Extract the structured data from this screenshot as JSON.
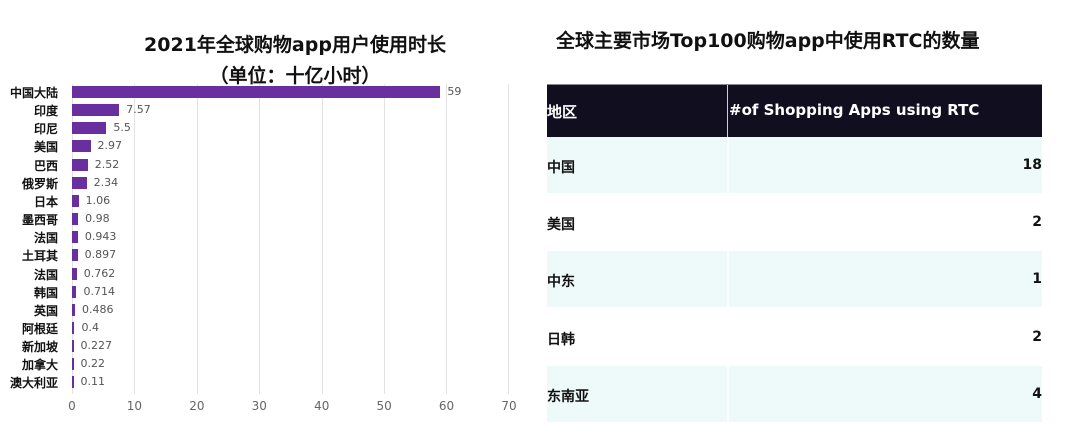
{
  "chart_data": {
    "type": "bar",
    "orientation": "horizontal",
    "title": "2021年全球购物app用户使用时长",
    "subtitle": "（单位：十亿小时）",
    "xlabel": "",
    "ylabel": "",
    "xlim": [
      0,
      70
    ],
    "xticks": [
      0,
      10,
      20,
      30,
      40,
      50,
      60,
      70
    ],
    "grid": true,
    "legend": null,
    "bar_color": "#6a2f9f",
    "categories": [
      "中国大陆",
      "印度",
      "印尼",
      "美国",
      "巴西",
      "俄罗斯",
      "日本",
      "墨西哥",
      "法国",
      "土耳其",
      "法国",
      "韩国",
      "英国",
      "阿根廷",
      "新加坡",
      "加拿大",
      "澳大利亚"
    ],
    "values": [
      59,
      7.57,
      5.5,
      2.97,
      2.52,
      2.34,
      1.06,
      0.98,
      0.943,
      0.897,
      0.762,
      0.714,
      0.486,
      0.4,
      0.227,
      0.22,
      0.11
    ],
    "value_labels": [
      "59",
      "7.57",
      "5.5",
      "2.97",
      "2.52",
      "2.34",
      "1.06",
      "0.98",
      "0.943",
      "0.897",
      "0.762",
      "0.714",
      "0.486",
      "0.4",
      "0.227",
      "0.22",
      "0.11"
    ]
  },
  "left_chart": {
    "title_line1": "2021年全球购物app用户使用时长",
    "title_line2": "（单位：十亿小时）",
    "tick_labels": [
      "0",
      "10",
      "20",
      "30",
      "40",
      "50",
      "60",
      "70"
    ]
  },
  "right_table": {
    "title": "全球主要市场Top100购物app中使用RTC的数量",
    "header": {
      "region": "地区",
      "count": "#of Shopping Apps using RTC"
    },
    "rows": [
      {
        "region": "中国",
        "count": "18"
      },
      {
        "region": "美国",
        "count": "2"
      },
      {
        "region": "中东",
        "count": "1"
      },
      {
        "region": "日韩",
        "count": "2"
      },
      {
        "region": "东南亚",
        "count": "4"
      }
    ],
    "colors": {
      "header_bg": "#100e1f",
      "header_text": "#ffffff",
      "stripe_bg": "#eefafa"
    }
  }
}
